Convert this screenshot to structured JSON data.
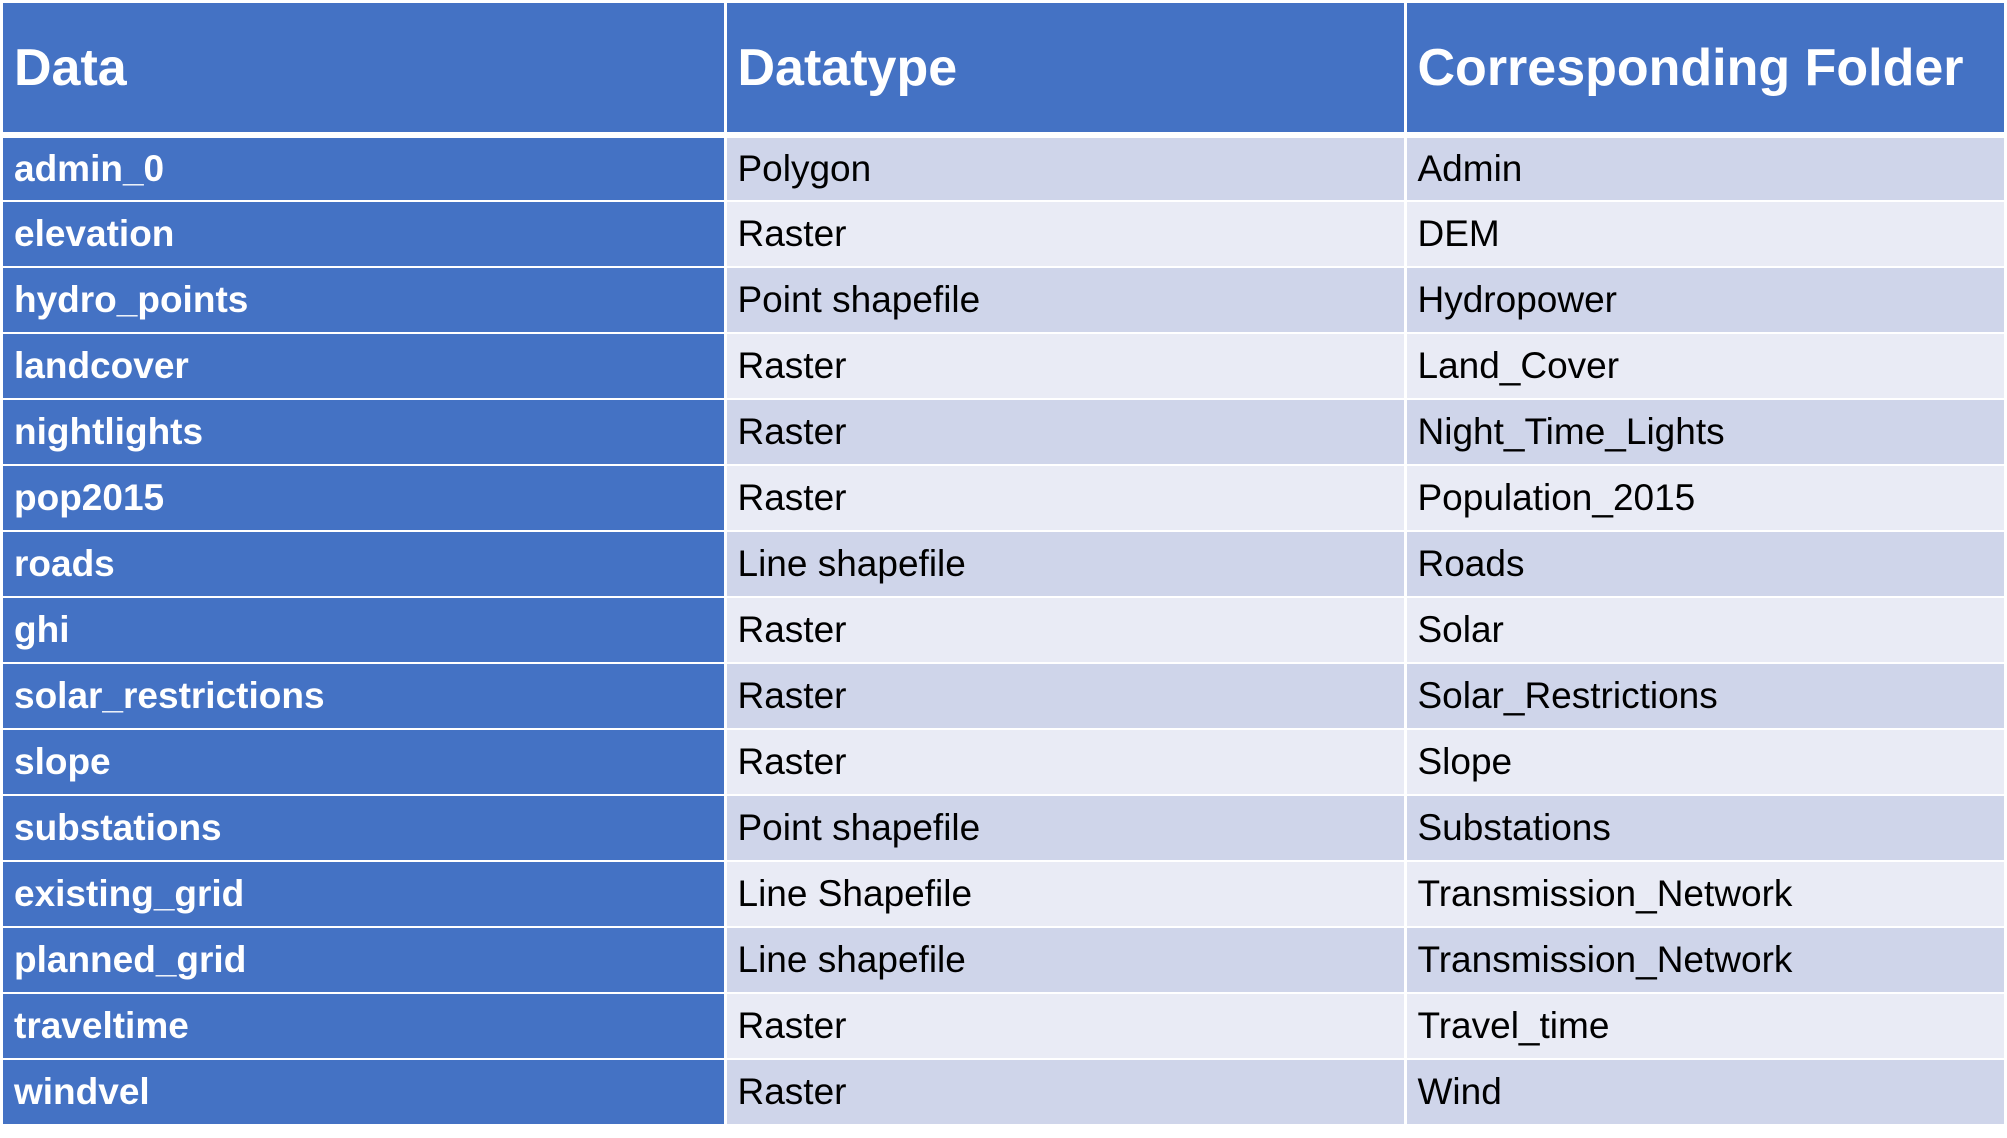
{
  "table": {
    "headers": [
      "Data",
      "Datatype",
      "Corresponding Folder"
    ],
    "rows": [
      [
        "admin_0",
        "Polygon",
        "Admin"
      ],
      [
        "elevation",
        "Raster",
        "DEM"
      ],
      [
        "hydro_points",
        "Point shapefile",
        "Hydropower"
      ],
      [
        "landcover",
        "Raster",
        "Land_Cover"
      ],
      [
        "nightlights",
        "Raster",
        "Night_Time_Lights"
      ],
      [
        "pop2015",
        "Raster",
        "Population_2015"
      ],
      [
        "roads",
        "Line shapefile",
        "Roads"
      ],
      [
        "ghi",
        "Raster",
        "Solar"
      ],
      [
        "solar_restrictions",
        "Raster",
        "Solar_Restrictions"
      ],
      [
        "slope",
        "Raster",
        "Slope"
      ],
      [
        "substations",
        "Point shapefile",
        "Substations"
      ],
      [
        "existing_grid",
        "Line Shapefile",
        "Transmission_Network"
      ],
      [
        "planned_grid",
        "Line shapefile",
        "Transmission_Network"
      ],
      [
        "traveltime",
        "Raster",
        "Travel_time"
      ],
      [
        "windvel",
        "Raster",
        "Wind"
      ]
    ]
  },
  "colors": {
    "header_bg": "#4472c4",
    "band_dark": "#cfd5ea",
    "band_light": "#e9ebf5",
    "header_text": "#ffffff",
    "body_text": "#000000"
  }
}
